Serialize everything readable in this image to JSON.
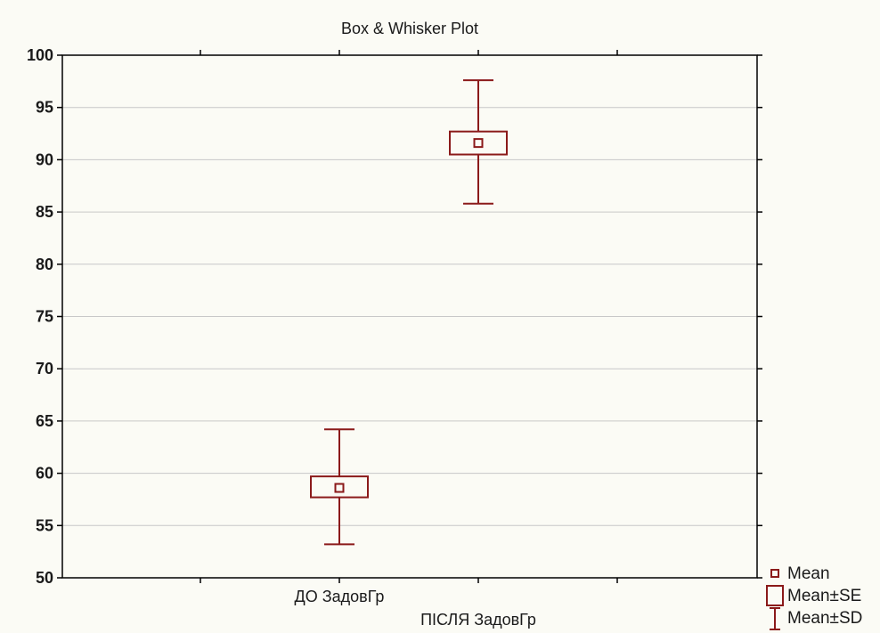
{
  "chart_data": {
    "type": "box",
    "title": "Box & Whisker Plot",
    "xlabel": "",
    "ylabel": "",
    "ylim": [
      50,
      100
    ],
    "yticks": [
      50,
      55,
      60,
      65,
      70,
      75,
      80,
      85,
      90,
      95,
      100
    ],
    "grid": "horizontal",
    "series_color": "#8b1a1a",
    "categories": [
      "ДО ЗадовГр",
      "ПІСЛЯ ЗадовГр"
    ],
    "groups": [
      {
        "name": "ДО ЗадовГр",
        "mean": 58.6,
        "se_low": 57.7,
        "se_high": 59.7,
        "sd_low": 53.2,
        "sd_high": 64.2
      },
      {
        "name": "ПІСЛЯ ЗадовГр",
        "mean": 91.6,
        "se_low": 90.5,
        "se_high": 92.7,
        "sd_low": 85.8,
        "sd_high": 97.6
      }
    ],
    "legend": {
      "placement": "bottom-right",
      "items": [
        {
          "symbol": "mean",
          "label": "Mean"
        },
        {
          "symbol": "box",
          "label": "Mean±SE"
        },
        {
          "symbol": "whisker",
          "label": "Mean±SD"
        }
      ]
    }
  }
}
